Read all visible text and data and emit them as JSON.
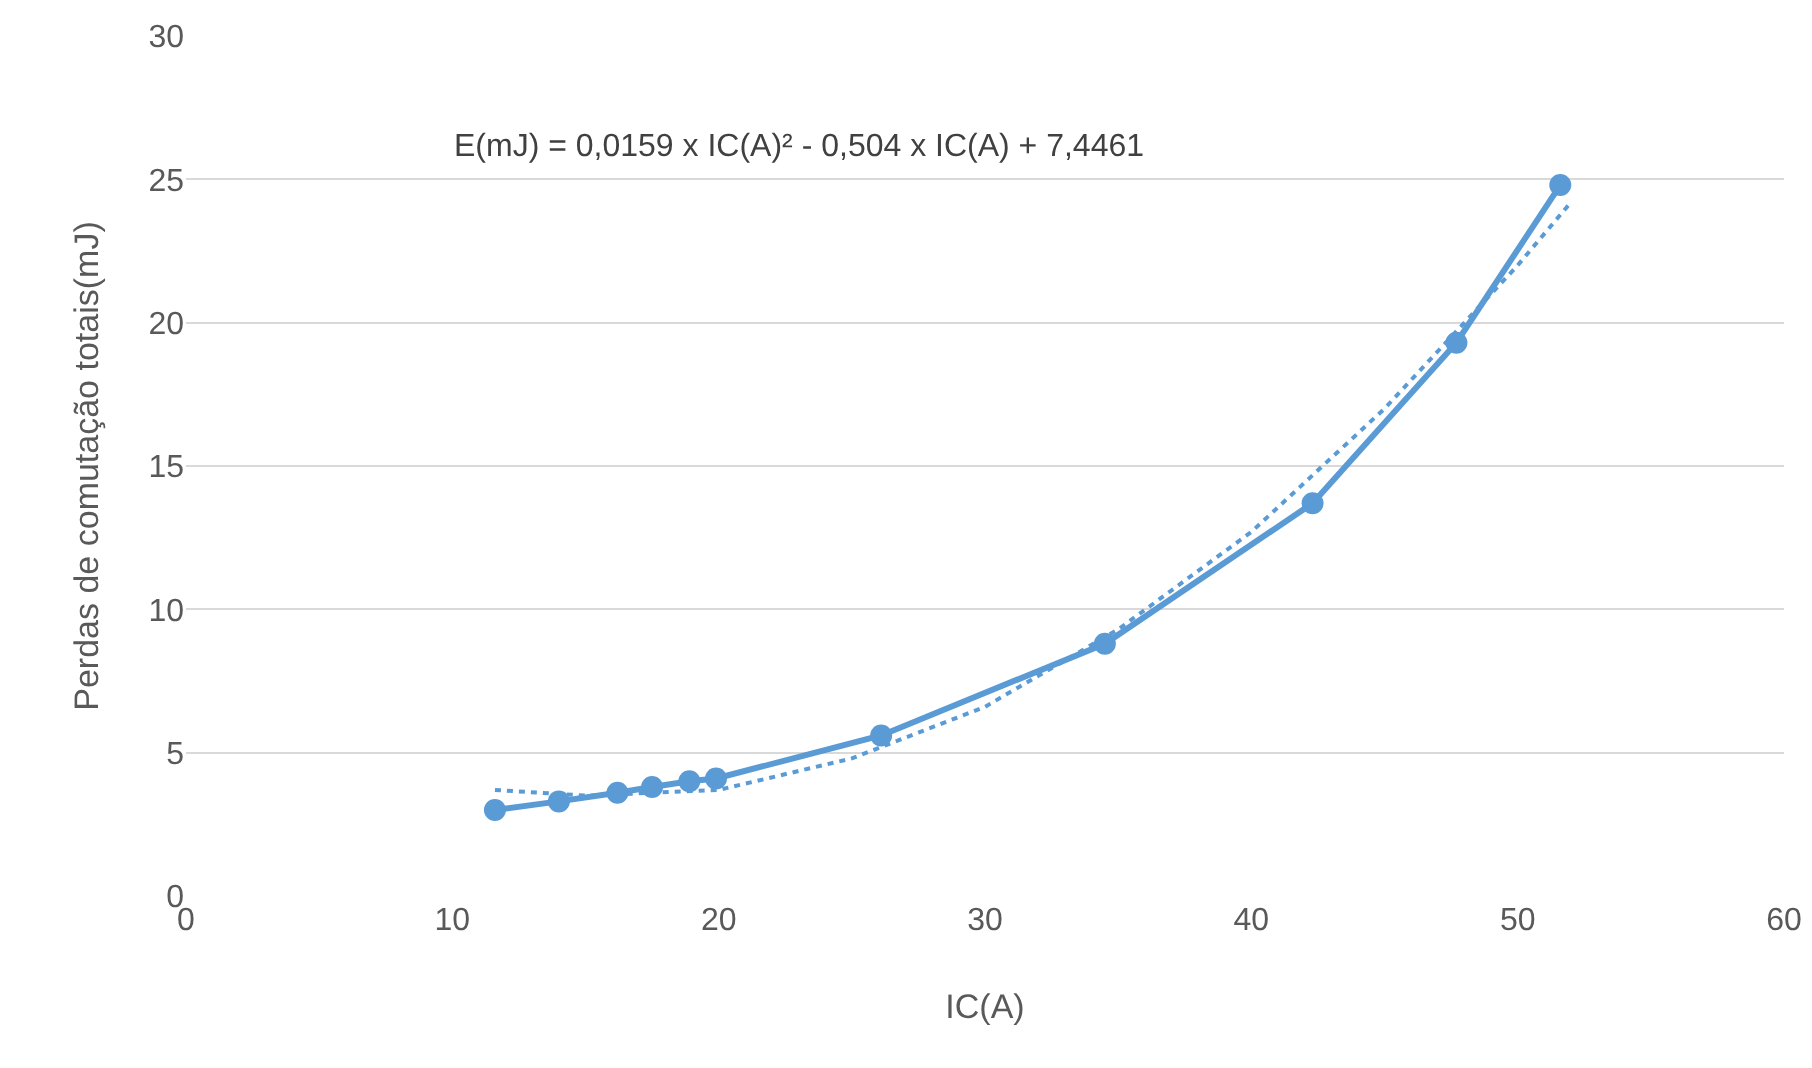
{
  "chart_data": {
    "type": "line",
    "xlabel": "IC(A)",
    "ylabel": "Perdas de comutação totais(mJ)",
    "annotations": [
      "E(mJ) = 0,0159 x IC(A)² - 0,504 x IC(A) + 7,4461"
    ],
    "series": [
      {
        "color": "#5b9bd5",
        "x": [
          11.6,
          14.0,
          16.2,
          17.5,
          18.9,
          19.9,
          26.1,
          34.5,
          42.3,
          47.7,
          51.6
        ],
        "values": [
          3.0,
          3.3,
          3.6,
          3.8,
          4.0,
          4.1,
          5.6,
          8.8,
          13.7,
          19.3,
          24.8
        ],
        "marker": "circle",
        "line_style": "solid"
      },
      {
        "color": "#5b9bd5",
        "x": [
          11.6,
          15,
          20,
          25,
          30,
          35,
          40,
          45,
          50,
          52
        ],
        "values": [
          3.7,
          3.5,
          3.7,
          4.8,
          6.6,
          9.3,
          12.7,
          17.0,
          22.0,
          24.2
        ],
        "marker": "none",
        "line_style": "dotted"
      }
    ],
    "xlim": [
      0,
      60
    ],
    "xticks": [
      0,
      10,
      20,
      30,
      40,
      50,
      60
    ],
    "ylim": [
      0,
      30
    ],
    "yticks": [
      0,
      5,
      10,
      15,
      20,
      25,
      30
    ],
    "grid": "y"
  }
}
